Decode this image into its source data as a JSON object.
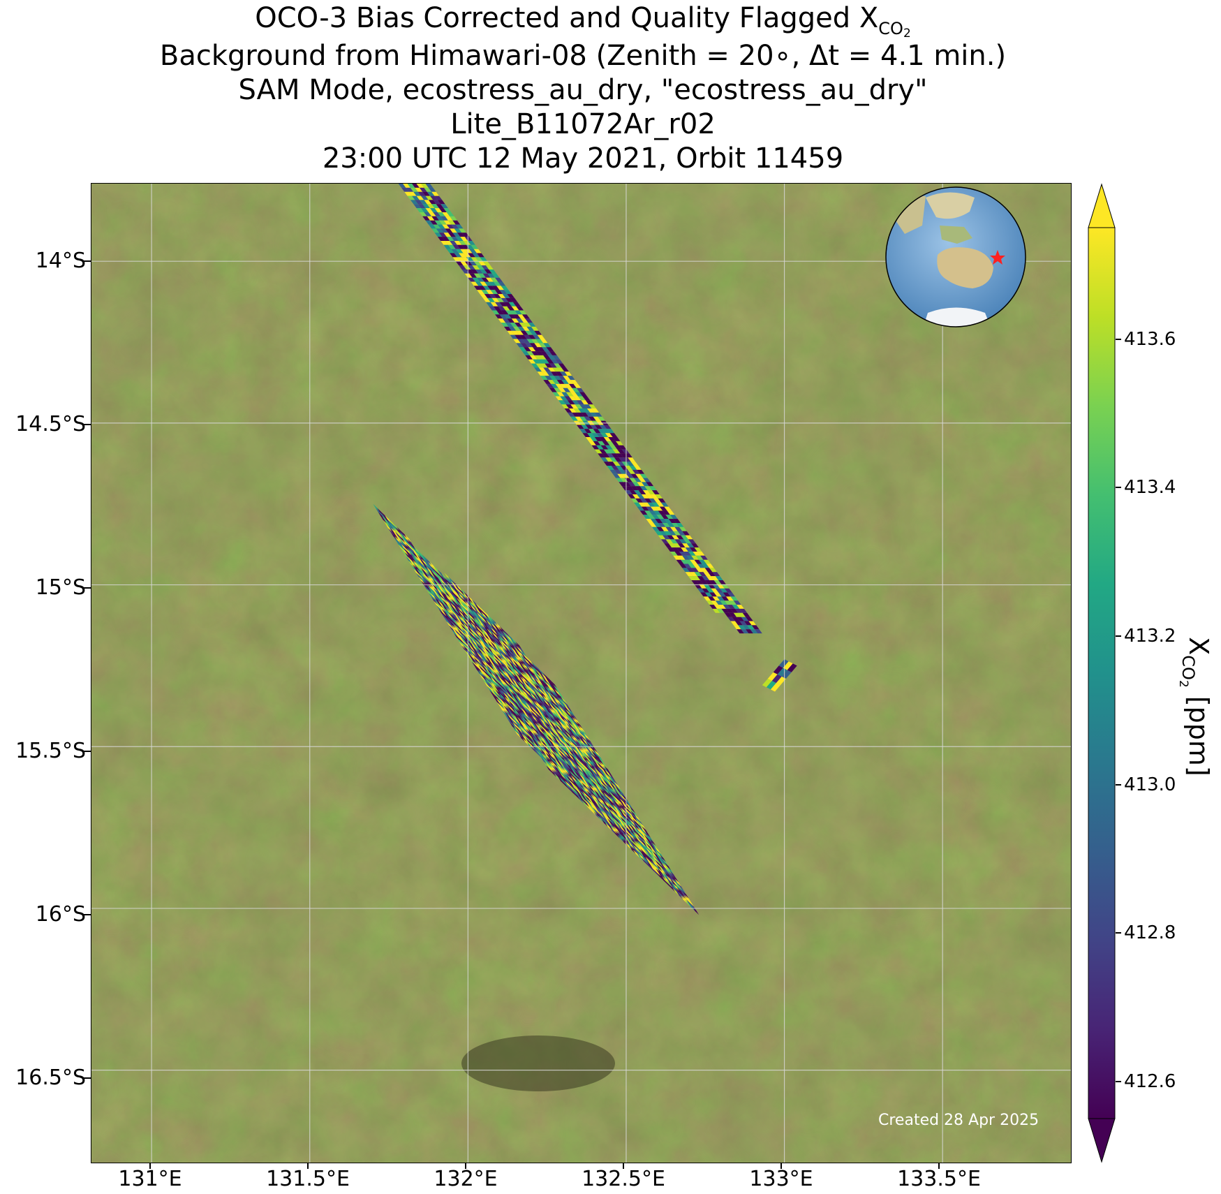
{
  "title": {
    "line1_prefix": "OCO-3 Bias Corrected and Quality Flagged X",
    "line1_sub": "CO",
    "line1_sub2": "2",
    "line2": "Background from Himawari-08 (Zenith = 20∘, Δt =  4.1 min.)",
    "line3": "SAM Mode, ecostress_au_dry, \"ecostress_au_dry\"",
    "line4": "Lite_B11072Ar_r02",
    "line5": "23:00 UTC 12 May 2021, Orbit 11459"
  },
  "map": {
    "lon_ticks": [
      "131°E",
      "131.5°E",
      "132°E",
      "132.5°E",
      "133°E",
      "133.5°E"
    ],
    "lat_ticks": [
      "14°S",
      "14.5°S",
      "15°S",
      "15.5°S",
      "16°S",
      "16.5°S"
    ],
    "lon_values": [
      131.0,
      131.5,
      132.0,
      132.5,
      133.0,
      133.5
    ],
    "lat_values": [
      -14.0,
      -14.5,
      -15.0,
      -15.5,
      -16.0,
      -16.5
    ],
    "lon_range": [
      130.81,
      133.91
    ],
    "lat_range": [
      -13.76,
      -16.79
    ],
    "created": "Created 28 Apr 2025",
    "inset_globe": "globe-icon centered on Australia with red star at target"
  },
  "colorbar": {
    "label_prefix": "X",
    "label_sub": "CO",
    "label_sub2": "2",
    "label_suffix": " [ppm]",
    "ticks": [
      "412.6",
      "412.8",
      "413.0",
      "413.2",
      "413.4",
      "413.6"
    ],
    "tick_values": [
      412.6,
      412.8,
      413.0,
      413.2,
      413.4,
      413.6
    ],
    "range": [
      412.55,
      413.75
    ],
    "colormap": "viridis",
    "extend": "both"
  },
  "chart_data": {
    "type": "heatmap",
    "title": "OCO-3 Bias Corrected and Quality Flagged XCO2",
    "xlabel": "",
    "ylabel": "",
    "colorbar_label": "XCO2 [ppm]",
    "color_range": [
      412.55,
      413.75
    ],
    "swaths": [
      {
        "name": "narrow strip",
        "corners_lonlat": [
          [
            131.78,
            -13.76
          ],
          [
            131.88,
            -13.76
          ],
          [
            132.91,
            -15.05
          ],
          [
            132.92,
            -15.24
          ],
          [
            132.83,
            -15.15
          ]
        ]
      },
      {
        "name": "main block",
        "corners_lonlat": [
          [
            131.7,
            -14.75
          ],
          [
            131.9,
            -14.75
          ],
          [
            132.25,
            -14.6
          ],
          [
            132.8,
            -15.12
          ],
          [
            132.3,
            -15.53
          ],
          [
            132.18,
            -15.5
          ]
        ]
      },
      {
        "name": "small cluster",
        "corners_lonlat": [
          [
            132.93,
            -15.31
          ],
          [
            133.0,
            -15.23
          ],
          [
            132.97,
            -15.33
          ]
        ]
      }
    ]
  }
}
